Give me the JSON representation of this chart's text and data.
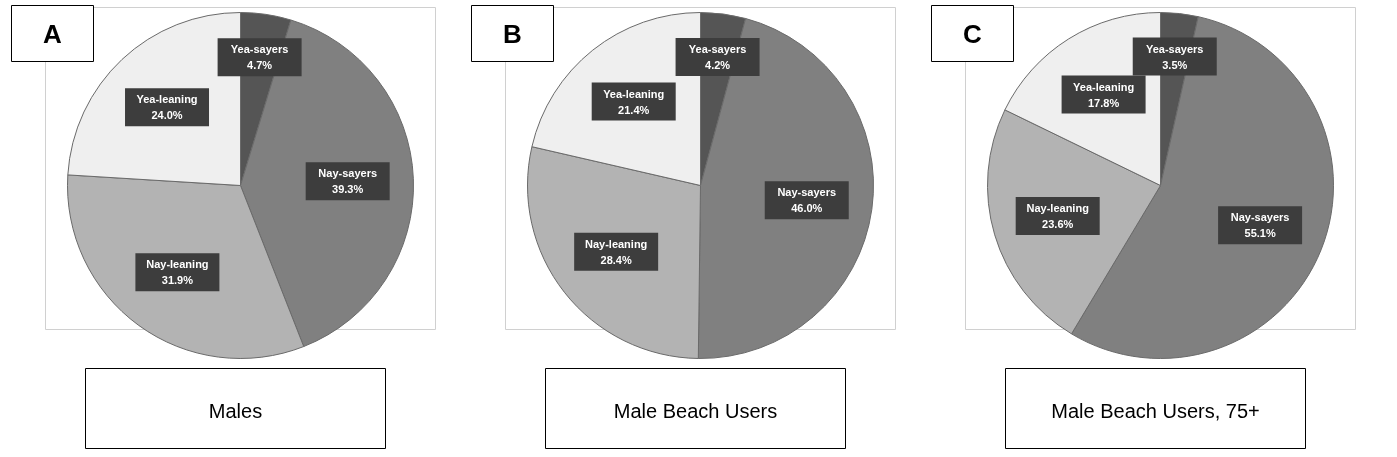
{
  "chart_data": [
    {
      "type": "pie",
      "title": "Males",
      "annotations": [
        "A"
      ],
      "categories": [
        "Yea-sayers",
        "Nay-sayers",
        "Nay-leaning",
        "Yea-leaning"
      ],
      "values": [
        4.7,
        39.3,
        31.9,
        24.0
      ],
      "value_labels": [
        "4.7%",
        "39.3%",
        "31.9%",
        "24.0%"
      ],
      "colors": [
        "#555555",
        "#808080",
        "#b3b3b3",
        "#efefef"
      ]
    },
    {
      "type": "pie",
      "title": "Male Beach Users",
      "annotations": [
        "B"
      ],
      "categories": [
        "Yea-sayers",
        "Nay-sayers",
        "Nay-leaning",
        "Yea-leaning"
      ],
      "values": [
        4.2,
        46.0,
        28.4,
        21.4
      ],
      "value_labels": [
        "4.2%",
        "46.0%",
        "28.4%",
        "21.4%"
      ],
      "colors": [
        "#555555",
        "#808080",
        "#b3b3b3",
        "#efefef"
      ]
    },
    {
      "type": "pie",
      "title": "Male Beach Users, 75+",
      "annotations": [
        "C"
      ],
      "categories": [
        "Yea-sayers",
        "Nay-sayers",
        "Nay-leaning",
        "Yea-leaning"
      ],
      "values": [
        3.5,
        55.1,
        23.6,
        17.8
      ],
      "value_labels": [
        "3.5%",
        "55.1%",
        "23.6%",
        "17.8%"
      ],
      "colors": [
        "#555555",
        "#808080",
        "#b3b3b3",
        "#efefef"
      ]
    }
  ]
}
